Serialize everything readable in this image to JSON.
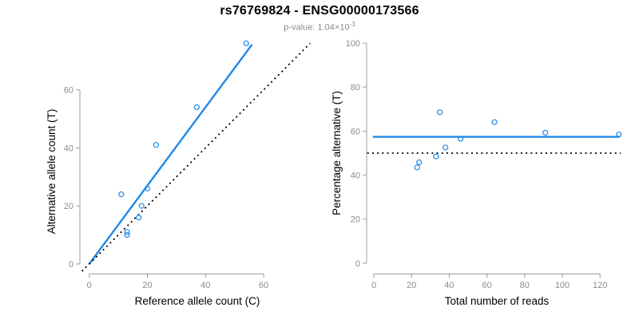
{
  "title": "rs76769824 - ENSG00000173566",
  "subtitle": {
    "base": "p-value: 1.04×10",
    "exponent": "-3"
  },
  "colors": {
    "blue": "#1E88E8",
    "black": "#000000",
    "axis_line": "#9E9E9E",
    "tick_label": "#8C8C8C",
    "axis_title": "#000000",
    "subtitle_gray": "#8C8C8C"
  },
  "chart_data": [
    {
      "type": "scatter",
      "panel": "left",
      "xlabel": "Reference allele count (C)",
      "ylabel": "Alternative allele count (T)",
      "xticks": [
        0,
        20,
        40,
        60
      ],
      "yticks": [
        0,
        20,
        40,
        60
      ],
      "xlim": [
        -3,
        79
      ],
      "ylim": [
        -3,
        79
      ],
      "grid": false,
      "points": [
        [
          11,
          24
        ],
        [
          13,
          10
        ],
        [
          13,
          11
        ],
        [
          17,
          16
        ],
        [
          18,
          20
        ],
        [
          20,
          26
        ],
        [
          23,
          41
        ],
        [
          37,
          54
        ],
        [
          54,
          76
        ]
      ],
      "lines": [
        {
          "name": "fit-line",
          "style": "solid",
          "color": "blue",
          "from": [
            0,
            0
          ],
          "to": [
            56,
            75.6
          ]
        },
        {
          "name": "identity-line",
          "style": "dotted",
          "color": "black",
          "from": [
            -2.5,
            -2.5
          ],
          "to": [
            76,
            76
          ]
        }
      ]
    },
    {
      "type": "scatter",
      "panel": "right",
      "xlabel": "Total number of reads",
      "ylabel": "Percentage alternative (T)",
      "xticks": [
        0,
        20,
        40,
        60,
        80,
        100,
        120
      ],
      "yticks": [
        0,
        20,
        40,
        60,
        80,
        100
      ],
      "xlim": [
        -4,
        135
      ],
      "ylim": [
        -4,
        104
      ],
      "grid": false,
      "points": [
        [
          23,
          43.5
        ],
        [
          24,
          45.8
        ],
        [
          33,
          48.5
        ],
        [
          35,
          68.6
        ],
        [
          38,
          52.6
        ],
        [
          46,
          56.5
        ],
        [
          64,
          64.1
        ],
        [
          91,
          59.3
        ],
        [
          130,
          58.5
        ]
      ],
      "lines": [
        {
          "name": "mean-percentage-line",
          "style": "solid",
          "color": "blue",
          "from": [
            -0.5,
            57.4
          ],
          "to": [
            130.5,
            57.4
          ]
        },
        {
          "name": "expected-50-line",
          "style": "dotted",
          "color": "black",
          "from": [
            -3.5,
            50
          ],
          "to": [
            131,
            50
          ]
        }
      ]
    }
  ]
}
